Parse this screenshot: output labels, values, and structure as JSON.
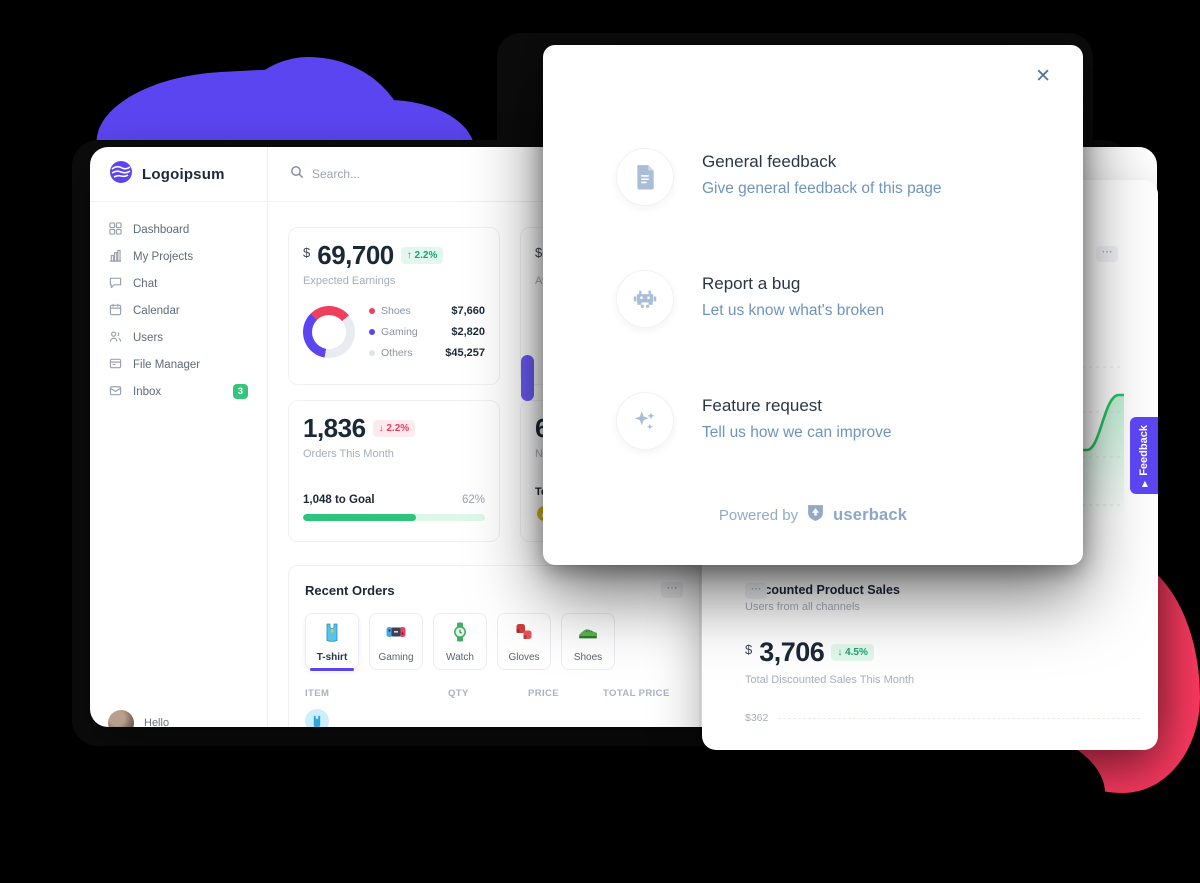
{
  "colors": {
    "accent_purple": "#5b45f0",
    "accent_pink": "#fa3a60",
    "green": "#2fc47c",
    "red": "#ee3b5f",
    "steel_blue": "#6e94bd"
  },
  "sidebar": {
    "logo_text": "Logoipsum",
    "items": [
      {
        "label": "Dashboard",
        "icon": "grid-icon"
      },
      {
        "label": "My Projects",
        "icon": "bar-chart-icon"
      },
      {
        "label": "Chat",
        "icon": "chat-icon"
      },
      {
        "label": "Calendar",
        "icon": "calendar-icon"
      },
      {
        "label": "Users",
        "icon": "users-icon"
      },
      {
        "label": "File Manager",
        "icon": "file-manager-icon"
      },
      {
        "label": "Inbox",
        "icon": "inbox-icon",
        "badge": "3"
      }
    ],
    "user_greeting": "Hello"
  },
  "header": {
    "search_placeholder": "Search..."
  },
  "stats": {
    "earnings": {
      "currency": "$",
      "value": "69,700",
      "delta_arrow": "↑",
      "delta": "2.2%",
      "label": "Expected Earnings",
      "legend": [
        {
          "name": "Shoes",
          "value": "$7,660"
        },
        {
          "name": "Gaming",
          "value": "$2,820"
        },
        {
          "name": "Others",
          "value": "$45,257"
        }
      ]
    },
    "orders": {
      "value": "1,836",
      "delta_arrow": "↓",
      "delta": "2.2%",
      "label": "Orders This Month",
      "goal_label": "1,048 to Goal",
      "goal_pct": "62%"
    },
    "average_partial": {
      "currency": "$",
      "value": "2",
      "label": "Aver"
    },
    "new_partial": {
      "value": "6.3",
      "label": "New",
      "today_label": "Toda",
      "avatar_letter": "A"
    }
  },
  "recent_orders": {
    "title": "Recent Orders",
    "menu_icon": "⋯",
    "tabs": [
      {
        "label": "T-shirt",
        "icon": "tshirt-icon",
        "active": true
      },
      {
        "label": "Gaming",
        "icon": "gamepad-icon"
      },
      {
        "label": "Watch",
        "icon": "watch-icon"
      },
      {
        "label": "Gloves",
        "icon": "gloves-icon"
      },
      {
        "label": "Shoes",
        "icon": "sneaker-icon"
      }
    ],
    "columns": [
      "ITEM",
      "QTY",
      "PRICE",
      "TOTAL PRICE"
    ]
  },
  "discounted": {
    "title": "Discounted Product Sales",
    "subtitle": "Users from all channels",
    "currency": "$",
    "value": "3,706",
    "delta_arrow": "↓",
    "delta": "4.5%",
    "label": "Total Discounted Sales This Month",
    "axis_tick": "$362",
    "chart_menu_icon": "⋯",
    "menu_icon": "⋯"
  },
  "modal": {
    "close_icon": "✕",
    "options": [
      {
        "icon": "document-icon",
        "title": "General feedback",
        "subtitle": "Give general feedback of this page"
      },
      {
        "icon": "bug-icon",
        "title": "Report a bug",
        "subtitle": "Let us know what's broken"
      },
      {
        "icon": "sparkles-icon",
        "title": "Feature request",
        "subtitle": "Tell us how we can improve"
      }
    ],
    "footer": {
      "powered_by": "Powered by",
      "brand": "userback"
    }
  },
  "feedback_tab": {
    "label": "Feedback",
    "arrow": "▶"
  }
}
